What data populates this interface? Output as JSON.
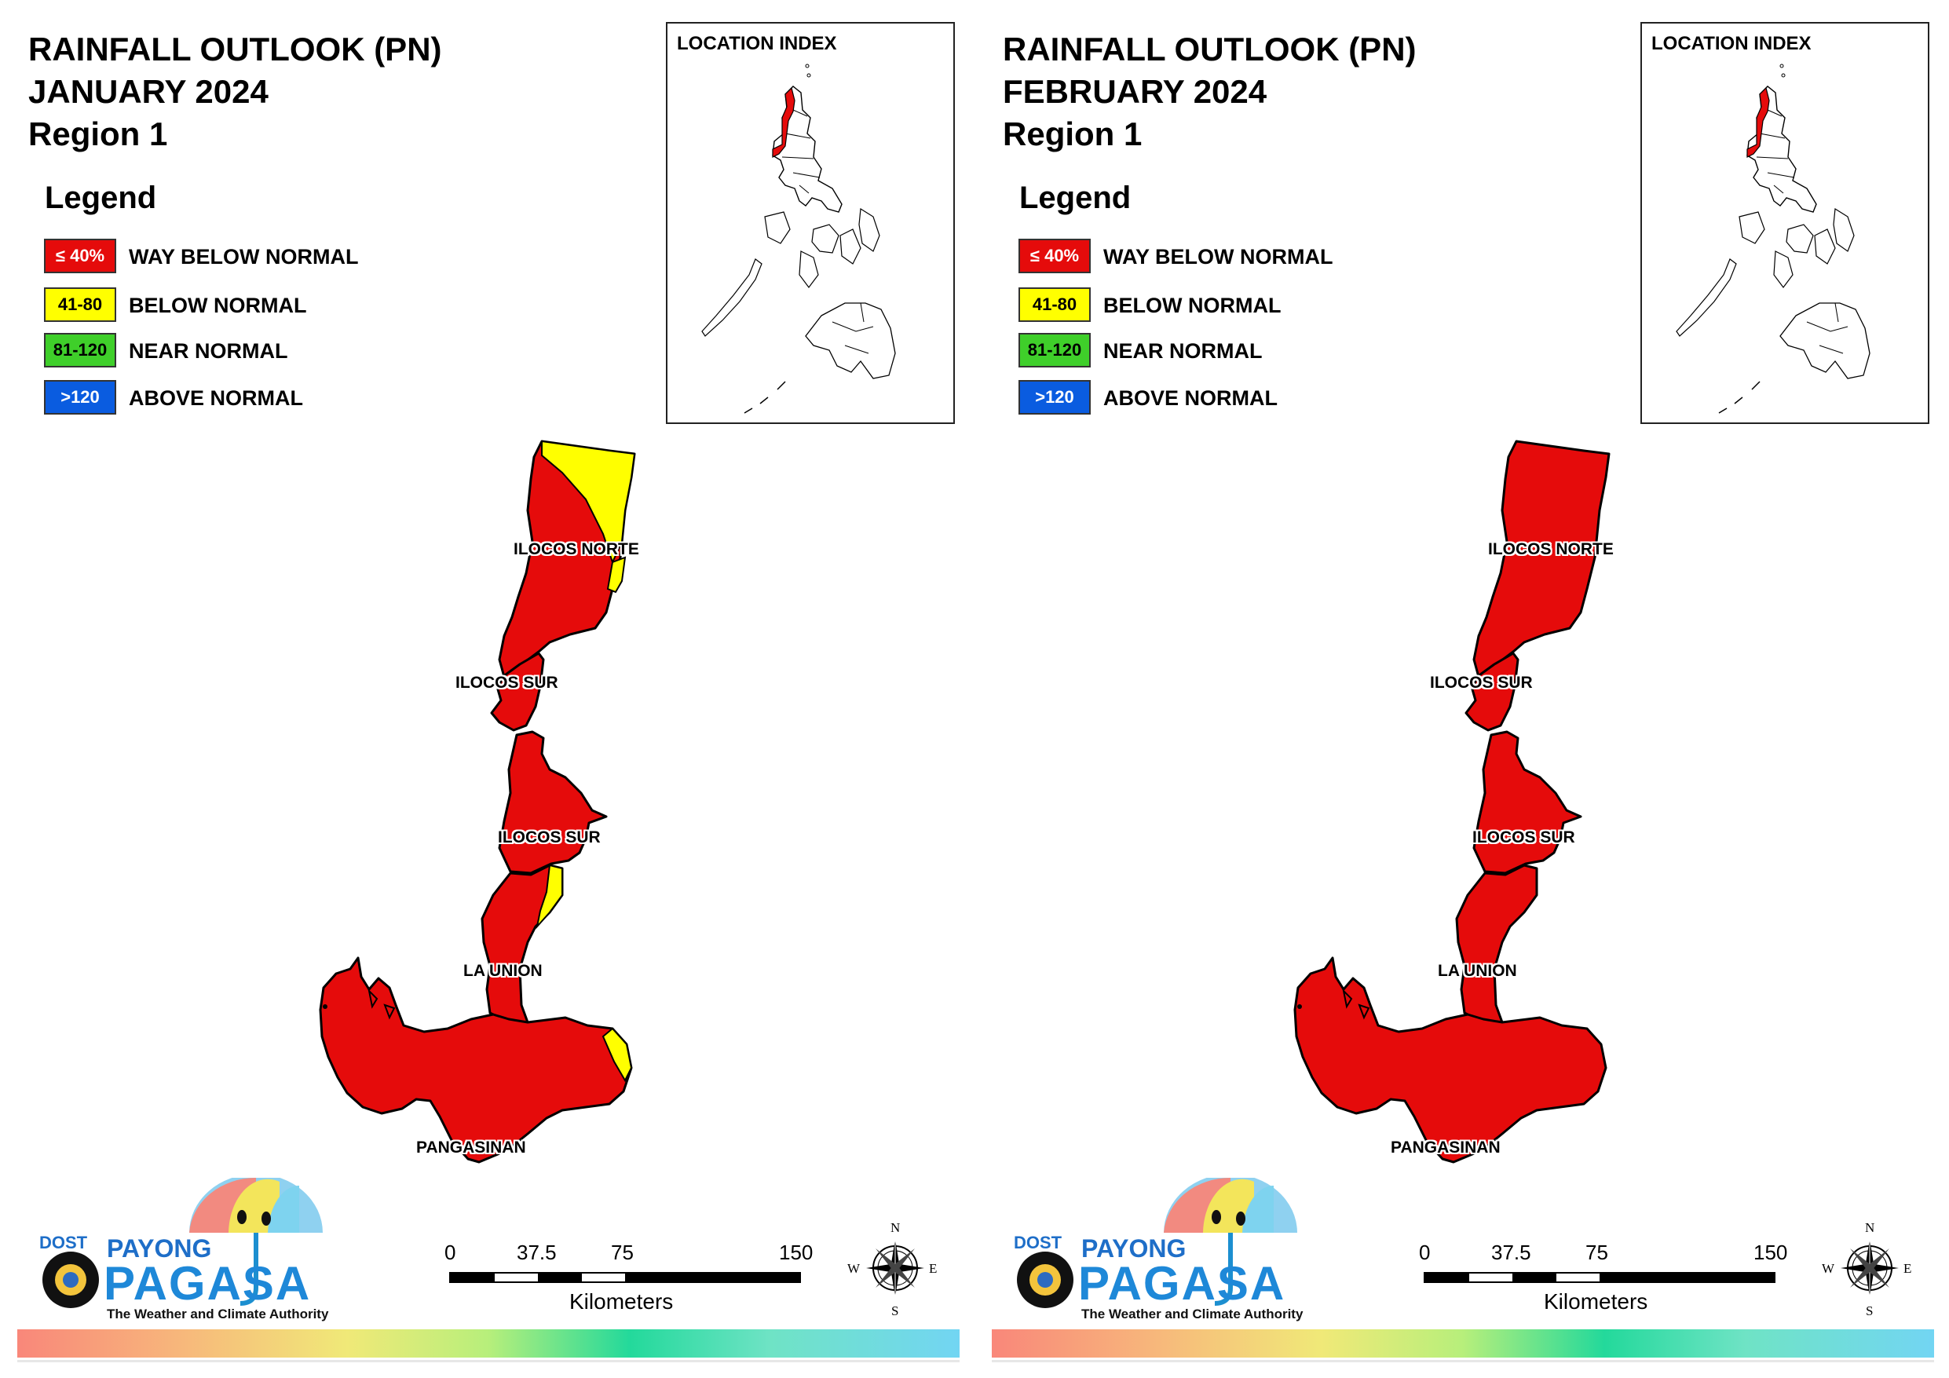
{
  "panels": [
    {
      "title_line1": "RAINFALL OUTLOOK (PN)",
      "title_line2": "JANUARY 2024",
      "title_line3": "Region 1",
      "has_yellow_areas": true
    },
    {
      "title_line1": "RAINFALL OUTLOOK (PN)",
      "title_line2": "FEBRUARY 2024",
      "title_line3": "Region 1",
      "has_yellow_areas": false
    }
  ],
  "legend": {
    "title": "Legend",
    "items": [
      {
        "swatch": "≤ 40%",
        "label": "WAY BELOW NORMAL",
        "color": "#e50b0b",
        "text_color": "#ffffff"
      },
      {
        "swatch": "41-80",
        "label": "BELOW NORMAL",
        "color": "#ffff00",
        "text_color": "#000000"
      },
      {
        "swatch": "81-120",
        "label": "NEAR NORMAL",
        "color": "#3fcf2a",
        "text_color": "#000000"
      },
      {
        "swatch": ">120",
        "label": "ABOVE NORMAL",
        "color": "#0a5ce0",
        "text_color": "#ffffff"
      }
    ]
  },
  "location_index": {
    "title": "LOCATION INDEX"
  },
  "provinces": [
    {
      "name": "ILOCOS NORTE"
    },
    {
      "name": "ILOCOS SUR"
    },
    {
      "name": "ILOCOS SUR"
    },
    {
      "name": "LA UNION"
    },
    {
      "name": "PANGASINAN"
    }
  ],
  "scale_bar": {
    "ticks": [
      "0",
      "37.5",
      "75",
      "150"
    ],
    "unit": "Kilometers"
  },
  "compass": {
    "n": "N",
    "s": "S",
    "e": "E",
    "w": "W"
  },
  "logo": {
    "dost": "DOST",
    "payong": "PAYONG",
    "pagasa": "PAGASA",
    "tagline": "The Weather and Climate Authority"
  },
  "colors": {
    "way_below": "#e50b0b",
    "below": "#ffff00",
    "near": "#3fcf2a",
    "above": "#0a5ce0"
  }
}
